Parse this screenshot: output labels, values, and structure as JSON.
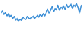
{
  "chart_data": {
    "type": "line",
    "color": "#3d8fd6",
    "tick_labels": false,
    "ylim": [
      0,
      100
    ],
    "values": [
      60,
      68,
      55,
      62,
      50,
      58,
      45,
      52,
      40,
      48,
      35,
      42,
      30,
      38,
      33,
      45,
      40,
      36,
      48,
      42,
      38,
      45,
      50,
      40,
      46,
      52,
      44,
      55,
      48,
      58,
      50,
      62,
      75,
      60,
      70,
      85,
      65,
      78,
      72,
      90,
      70,
      82,
      76,
      88,
      74,
      92,
      80,
      86,
      95,
      78,
      90,
      84,
      96,
      82,
      60,
      88,
      92
    ]
  }
}
